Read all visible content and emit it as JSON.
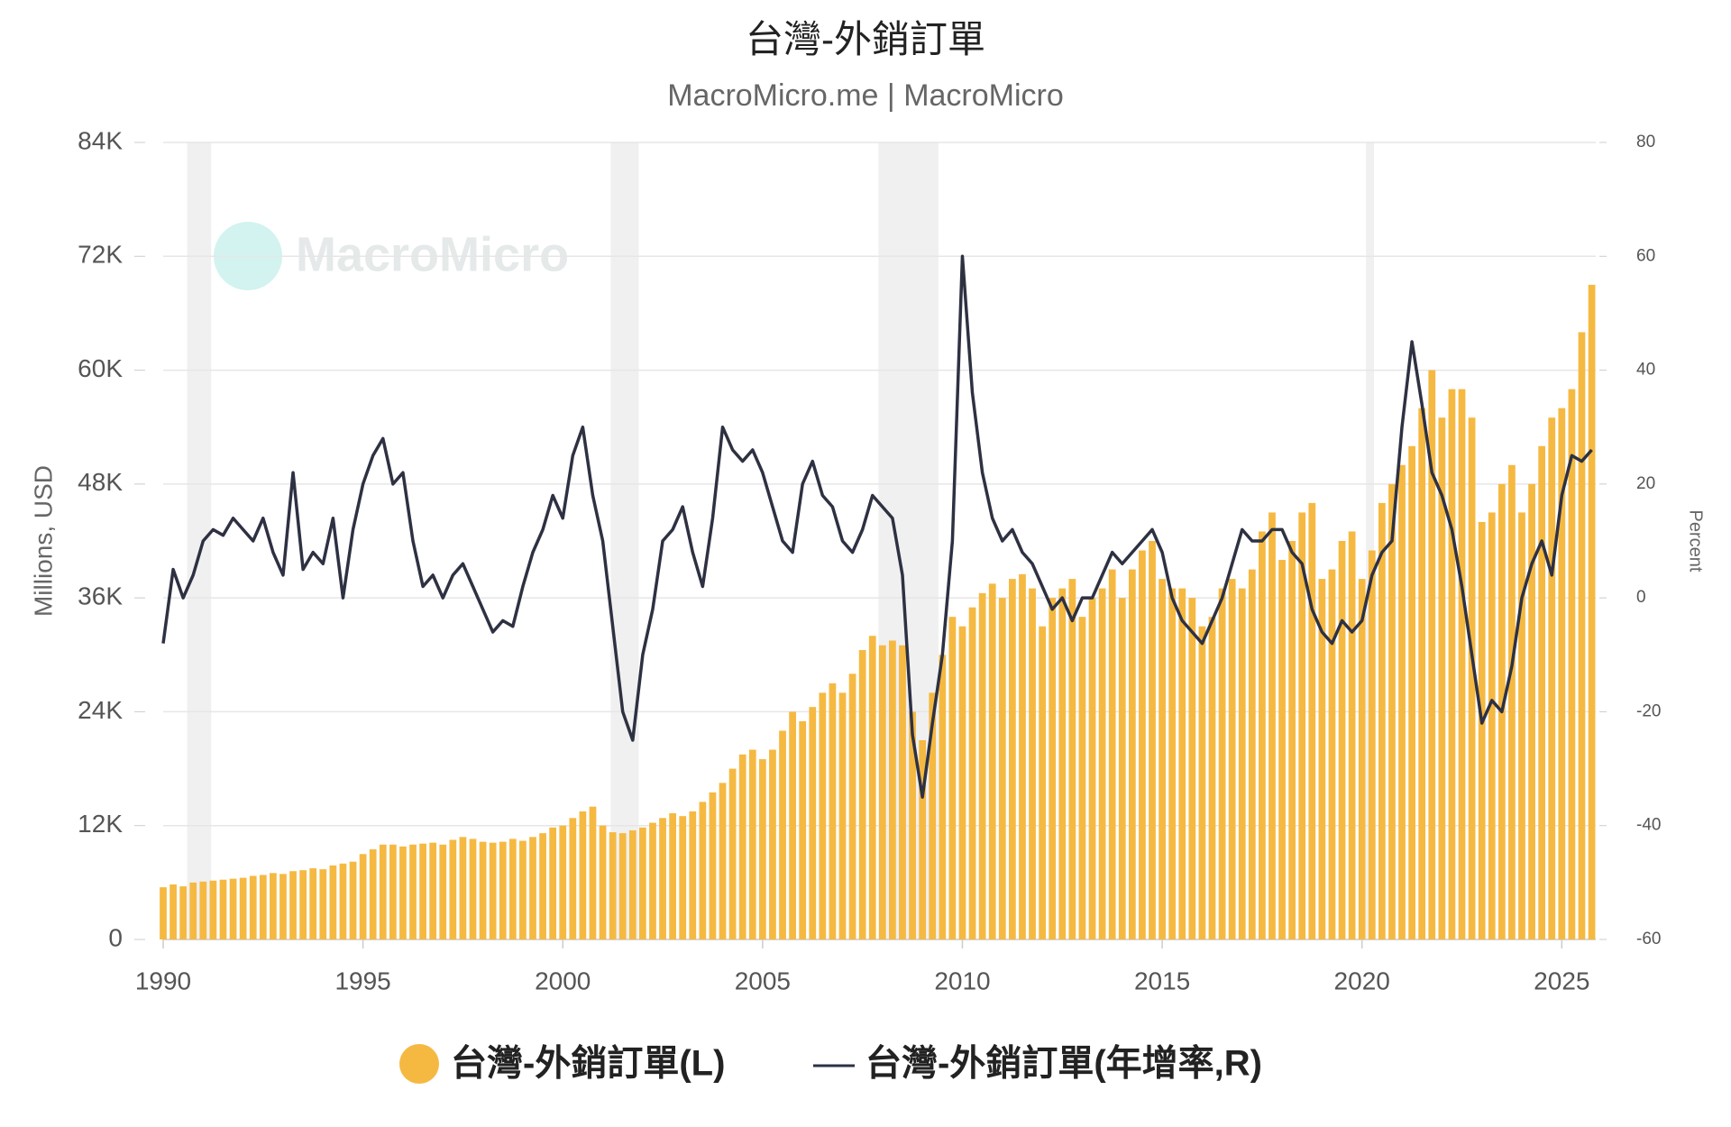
{
  "chart_data": {
    "type": "bar_line",
    "title": "台灣-外銷訂單",
    "subtitle": "MacroMicro.me | MacroMicro",
    "watermark": "MacroMicro",
    "ylabel": "Millions, USD",
    "y2label": "Percent",
    "xlim": [
      1990,
      2025.85
    ],
    "xticks": [
      1990,
      1995,
      2000,
      2005,
      2010,
      2015,
      2020,
      2025
    ],
    "ylim": [
      0,
      84000
    ],
    "yticks": [
      0,
      {
        "value": 12000,
        "label": "12K"
      },
      {
        "value": 24000,
        "label": "24K"
      },
      {
        "value": 36000,
        "label": "36K"
      },
      {
        "value": 48000,
        "label": "48K"
      },
      {
        "value": 60000,
        "label": "60K"
      },
      {
        "value": 72000,
        "label": "72K"
      },
      {
        "value": 84000,
        "label": "84K"
      }
    ],
    "y2lim": [
      -60,
      80
    ],
    "y2ticks": [
      -60,
      -40,
      -20,
      0,
      20,
      40,
      60,
      80
    ],
    "grid": true,
    "shaded_periods": [
      [
        1990.6,
        1991.2
      ],
      [
        2001.2,
        2001.9
      ],
      [
        2007.9,
        2009.4
      ],
      [
        2020.1,
        2020.3
      ]
    ],
    "x": [
      1990,
      1990.25,
      1990.5,
      1990.75,
      1991,
      1991.25,
      1991.5,
      1991.75,
      1992,
      1992.25,
      1992.5,
      1992.75,
      1993,
      1993.25,
      1993.5,
      1993.75,
      1994,
      1994.25,
      1994.5,
      1994.75,
      1995,
      1995.25,
      1995.5,
      1995.75,
      1996,
      1996.25,
      1996.5,
      1996.75,
      1997,
      1997.25,
      1997.5,
      1997.75,
      1998,
      1998.25,
      1998.5,
      1998.75,
      1999,
      1999.25,
      1999.5,
      1999.75,
      2000,
      2000.25,
      2000.5,
      2000.75,
      2001,
      2001.25,
      2001.5,
      2001.75,
      2002,
      2002.25,
      2002.5,
      2002.75,
      2003,
      2003.25,
      2003.5,
      2003.75,
      2004,
      2004.25,
      2004.5,
      2004.75,
      2005,
      2005.25,
      2005.5,
      2005.75,
      2006,
      2006.25,
      2006.5,
      2006.75,
      2007,
      2007.25,
      2007.5,
      2007.75,
      2008,
      2008.25,
      2008.5,
      2008.75,
      2009,
      2009.25,
      2009.5,
      2009.75,
      2010,
      2010.25,
      2010.5,
      2010.75,
      2011,
      2011.25,
      2011.5,
      2011.75,
      2012,
      2012.25,
      2012.5,
      2012.75,
      2013,
      2013.25,
      2013.5,
      2013.75,
      2014,
      2014.25,
      2014.5,
      2014.75,
      2015,
      2015.25,
      2015.5,
      2015.75,
      2016,
      2016.25,
      2016.5,
      2016.75,
      2017,
      2017.25,
      2017.5,
      2017.75,
      2018,
      2018.25,
      2018.5,
      2018.75,
      2019,
      2019.25,
      2019.5,
      2019.75,
      2020,
      2020.25,
      2020.5,
      2020.75,
      2021,
      2021.25,
      2021.5,
      2021.75,
      2022,
      2022.25,
      2022.5,
      2022.75,
      2023,
      2023.25,
      2023.5,
      2023.75,
      2024,
      2024.25,
      2024.5,
      2024.75,
      2025,
      2025.25,
      2025.5,
      2025.75
    ],
    "series": [
      {
        "name": "台灣-外銷訂單(L)",
        "color": "#f5b942",
        "values": [
          5500,
          5800,
          5600,
          6000,
          6100,
          6200,
          6300,
          6400,
          6500,
          6700,
          6800,
          7000,
          6900,
          7200,
          7300,
          7500,
          7400,
          7800,
          8000,
          8200,
          9000,
          9500,
          10000,
          10000,
          9800,
          10000,
          10100,
          10200,
          10000,
          10500,
          10800,
          10600,
          10300,
          10200,
          10300,
          10600,
          10400,
          10800,
          11200,
          11800,
          12000,
          12800,
          13500,
          14000,
          12000,
          11300,
          11200,
          11500,
          11800,
          12300,
          12800,
          13300,
          13000,
          13500,
          14500,
          15500,
          16500,
          18000,
          19500,
          20000,
          19000,
          20000,
          22000,
          24000,
          23000,
          24500,
          26000,
          27000,
          26000,
          28000,
          30500,
          32000,
          31000,
          31500,
          31000,
          24000,
          21000,
          26000,
          30000,
          34000,
          33000,
          35000,
          36500,
          37500,
          36000,
          38000,
          38500,
          37000,
          33000,
          36000,
          37000,
          38000,
          34000,
          36000,
          37000,
          39000,
          36000,
          39000,
          41000,
          42000,
          38000,
          37000,
          37000,
          36000,
          33000,
          34000,
          37000,
          38000,
          37000,
          39000,
          43000,
          45000,
          40000,
          42000,
          45000,
          46000,
          38000,
          39000,
          42000,
          43000,
          38000,
          41000,
          46000,
          48000,
          50000,
          52000,
          56000,
          60000,
          55000,
          58000,
          58000,
          55000,
          44000,
          45000,
          48000,
          50000,
          45000,
          48000,
          52000,
          55000,
          56000,
          58000,
          64000,
          69000
        ]
      },
      {
        "name": "台灣-外銷訂單(年增率,R)",
        "color": "#2e3142",
        "axis": "y2",
        "values": [
          -8,
          5,
          0,
          4,
          10,
          12,
          11,
          14,
          12,
          10,
          14,
          8,
          4,
          22,
          5,
          8,
          6,
          14,
          0,
          12,
          20,
          25,
          28,
          20,
          22,
          10,
          2,
          4,
          0,
          4,
          6,
          2,
          -2,
          -6,
          -4,
          -5,
          2,
          8,
          12,
          18,
          14,
          25,
          30,
          18,
          10,
          -5,
          -20,
          -25,
          -10,
          -2,
          10,
          12,
          16,
          8,
          2,
          14,
          30,
          26,
          24,
          26,
          22,
          16,
          10,
          8,
          20,
          24,
          18,
          16,
          10,
          8,
          12,
          18,
          16,
          14,
          4,
          -24,
          -35,
          -22,
          -10,
          10,
          60,
          36,
          22,
          14,
          10,
          12,
          8,
          6,
          2,
          -2,
          0,
          -4,
          0,
          0,
          4,
          8,
          6,
          8,
          10,
          12,
          8,
          0,
          -4,
          -6,
          -8,
          -4,
          0,
          6,
          12,
          10,
          10,
          12,
          12,
          8,
          6,
          -2,
          -6,
          -8,
          -4,
          -6,
          -4,
          4,
          8,
          10,
          30,
          45,
          34,
          22,
          18,
          12,
          2,
          -10,
          -22,
          -18,
          -20,
          -12,
          0,
          6,
          10,
          4,
          18,
          25,
          24,
          26
        ]
      }
    ]
  }
}
